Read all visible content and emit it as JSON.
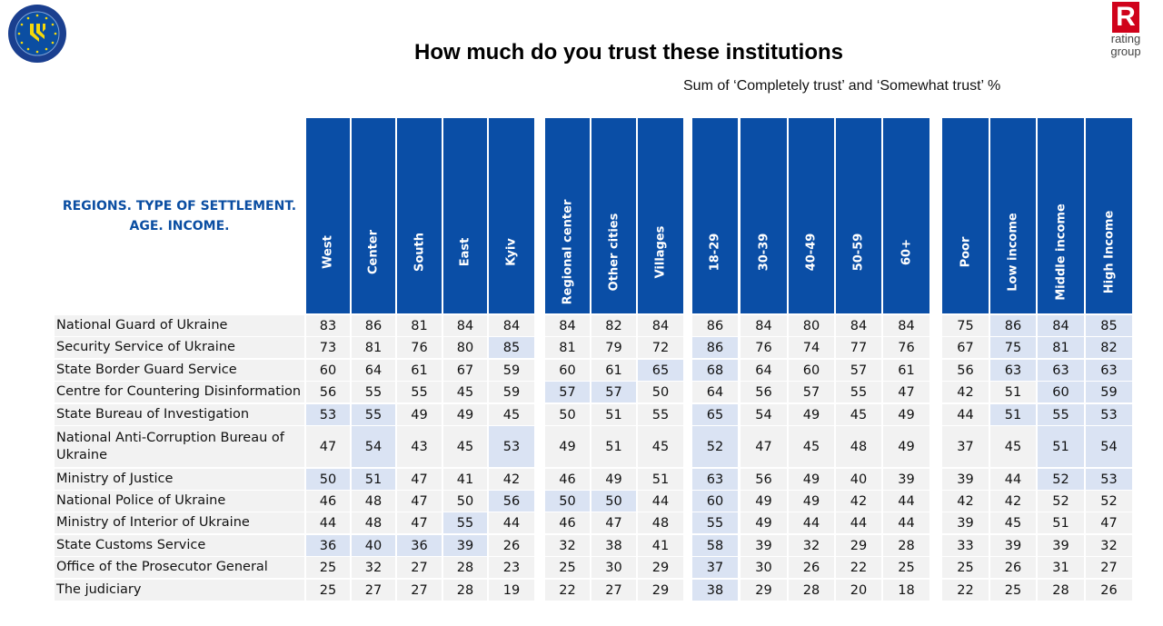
{
  "header": {
    "title": "How much do you trust these institutions",
    "subtitle": "Sum of ‘Completely trust’ and ‘Somewhat trust’ %"
  },
  "logos": {
    "left": "European Union EUAM Ukraine",
    "right": {
      "mark": "R",
      "text1": "rating",
      "text2": "group"
    }
  },
  "colors": {
    "header_bg": "#0a4ea6",
    "highlight": "#dae3f3",
    "cell_bg": "#f2f2f2",
    "corner_text": "#0b4ea2"
  },
  "chart_data": {
    "type": "table",
    "title": "How much do you trust these institutions",
    "subtitle": "Sum of ‘Completely trust’ and ‘Somewhat trust’ %",
    "corner_label": "REGIONS. TYPE OF SETTLEMENT. AGE. INCOME.",
    "columns": [
      "West",
      "Center",
      "South",
      "East",
      "Kyiv",
      "Regional center",
      "Other cities",
      "Villages",
      "18-29",
      "30-39",
      "40-49",
      "50-59",
      "60+",
      "Poor",
      "Low income",
      "Middle income",
      "High Income"
    ],
    "rows": [
      {
        "label": "National Guard of Ukraine",
        "values": [
          83,
          86,
          81,
          84,
          84,
          84,
          82,
          84,
          86,
          84,
          80,
          84,
          84,
          75,
          86,
          84,
          85
        ],
        "highlighted": [
          14,
          15,
          16
        ]
      },
      {
        "label": "Security Service of Ukraine",
        "values": [
          73,
          81,
          76,
          80,
          85,
          81,
          79,
          72,
          86,
          76,
          74,
          77,
          76,
          67,
          75,
          81,
          82
        ],
        "highlighted": [
          4,
          8,
          14,
          15,
          16
        ]
      },
      {
        "label": "State Border Guard Service",
        "values": [
          60,
          64,
          61,
          67,
          59,
          60,
          61,
          65,
          68,
          64,
          60,
          57,
          61,
          56,
          63,
          63,
          63
        ],
        "highlighted": [
          7,
          8,
          14,
          15,
          16
        ]
      },
      {
        "label": "Centre for Countering Disinformation",
        "values": [
          56,
          55,
          55,
          45,
          59,
          57,
          57,
          50,
          64,
          56,
          57,
          55,
          47,
          42,
          51,
          60,
          59
        ],
        "highlighted": [
          5,
          6,
          15,
          16
        ]
      },
      {
        "label": "State Bureau of Investigation",
        "values": [
          53,
          55,
          49,
          49,
          45,
          50,
          51,
          55,
          65,
          54,
          49,
          45,
          49,
          44,
          51,
          55,
          53
        ],
        "highlighted": [
          0,
          1,
          8,
          14,
          15,
          16
        ]
      },
      {
        "label": "National Anti-Corruption Bureau of Ukraine",
        "values": [
          47,
          54,
          43,
          45,
          53,
          49,
          51,
          45,
          52,
          47,
          45,
          48,
          49,
          37,
          45,
          51,
          54
        ],
        "highlighted": [
          1,
          4,
          8,
          15,
          16
        ]
      },
      {
        "label": "Ministry of Justice",
        "values": [
          50,
          51,
          47,
          41,
          42,
          46,
          49,
          51,
          63,
          56,
          49,
          40,
          39,
          39,
          44,
          52,
          53
        ],
        "highlighted": [
          0,
          1,
          8,
          15,
          16
        ]
      },
      {
        "label": "National Police of Ukraine",
        "values": [
          46,
          48,
          47,
          50,
          56,
          50,
          50,
          44,
          60,
          49,
          49,
          42,
          44,
          42,
          42,
          52,
          52
        ],
        "highlighted": [
          4,
          5,
          6,
          8
        ]
      },
      {
        "label": "Ministry of Interior of Ukraine",
        "values": [
          44,
          48,
          47,
          55,
          44,
          46,
          47,
          48,
          55,
          49,
          44,
          44,
          44,
          39,
          45,
          51,
          47
        ],
        "highlighted": [
          3,
          8
        ]
      },
      {
        "label": "State Customs Service",
        "values": [
          36,
          40,
          36,
          39,
          26,
          32,
          38,
          41,
          58,
          39,
          32,
          29,
          28,
          33,
          39,
          39,
          32
        ],
        "highlighted": [
          0,
          1,
          2,
          3,
          8
        ]
      },
      {
        "label": "Office of the Prosecutor General",
        "values": [
          25,
          32,
          27,
          28,
          23,
          25,
          30,
          29,
          37,
          30,
          26,
          22,
          25,
          25,
          26,
          31,
          27
        ],
        "highlighted": [
          8
        ]
      },
      {
        "label": "The judiciary",
        "values": [
          25,
          27,
          27,
          28,
          19,
          22,
          27,
          29,
          38,
          29,
          28,
          20,
          18,
          22,
          25,
          28,
          26
        ],
        "highlighted": [
          8
        ]
      }
    ]
  }
}
